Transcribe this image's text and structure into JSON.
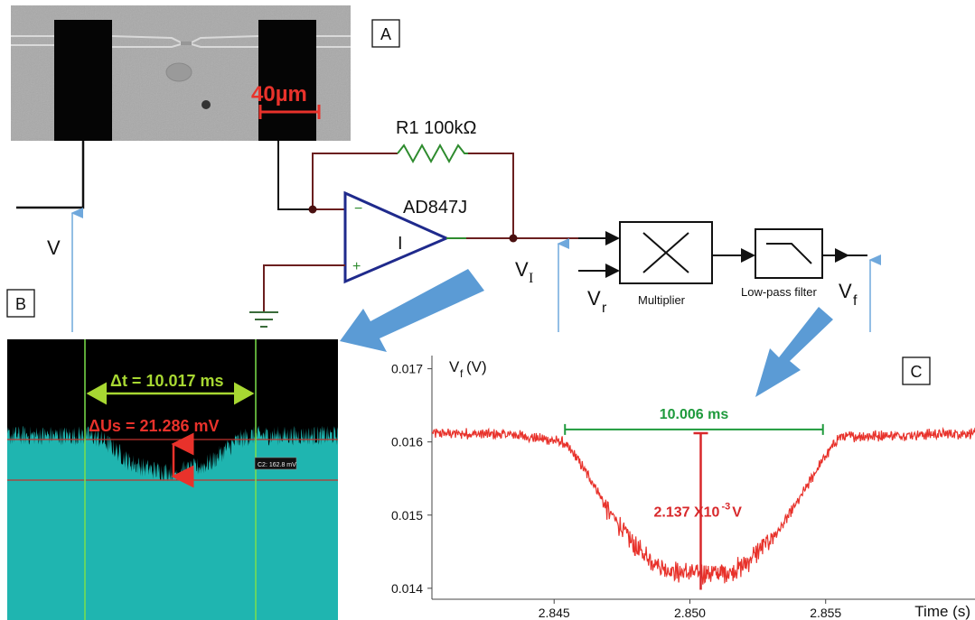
{
  "panels": {
    "a": "A",
    "b": "B",
    "c": "C"
  },
  "micrograph": {
    "scale_bar": "40µm"
  },
  "circuit": {
    "resistor": "R1 100kΩ",
    "opamp": "AD847J",
    "opamp_symbol": "I",
    "minus": "−",
    "plus": "+",
    "v_in": "V",
    "v_i_main": "V",
    "v_i_sub": "I",
    "v_r_main": "V",
    "v_r_sub": "r",
    "multiplier": "Multiplier",
    "lowpass": "Low-pass filter",
    "v_f_main": "V",
    "v_f_sub": "f"
  },
  "scope": {
    "dt_label": "Δt = 10.017 ms",
    "du_label": "ΔUs = 21.286 mV",
    "cursor_tag": "C2: 162.8 mV",
    "colors": {
      "background": "#000000",
      "trace": "#1fb5b0",
      "cursor_v": "#7be04a",
      "cursor_h": "#c0342d",
      "dt_text": "#a8d832",
      "du_text": "#e8322b"
    }
  },
  "chart_data": {
    "type": "line",
    "ylabel_main": "V",
    "ylabel_sub": "f",
    "ylabel_unit": " (V)",
    "xlabel": "Time (s)",
    "xlim": [
      2.8405,
      2.8605
    ],
    "ylim": [
      0.01385,
      0.01718
    ],
    "xticks": [
      2.845,
      2.85,
      2.855
    ],
    "xtick_labels": [
      "2.845",
      "2.850",
      "2.855"
    ],
    "yticks": [
      0.014,
      0.015,
      0.016,
      0.017
    ],
    "ytick_labels": [
      "0.014",
      "0.015",
      "0.016",
      "0.017"
    ],
    "series": [
      {
        "color": "#e8322b",
        "x": [
          2.8405,
          2.8435,
          2.8453,
          2.8458,
          2.8465,
          2.847,
          2.8475,
          2.848,
          2.849,
          2.8495,
          2.8505,
          2.8515,
          2.852,
          2.8525,
          2.8533,
          2.854,
          2.8548,
          2.8555,
          2.8605
        ],
        "y": [
          0.01612,
          0.0161,
          0.016,
          0.0158,
          0.0154,
          0.01505,
          0.01482,
          0.01455,
          0.01428,
          0.01422,
          0.0142,
          0.01422,
          0.01432,
          0.0145,
          0.0148,
          0.0152,
          0.0157,
          0.01607,
          0.01612
        ]
      }
    ],
    "annotations": {
      "width_label": "10.006 ms",
      "width_range": [
        2.8454,
        2.8549
      ],
      "width_y": 0.01617,
      "depth_label_main": "2.137 X10",
      "depth_label_exp": "-3",
      "depth_label_unit": " V",
      "depth_x": 2.8504,
      "depth_range": [
        0.01398,
        0.01612
      ],
      "width_color": "#1e9a3c",
      "depth_color": "#d8282b"
    }
  },
  "arrows": {
    "color": "#5b9bd5",
    "line_color": "#6fa8dc"
  }
}
